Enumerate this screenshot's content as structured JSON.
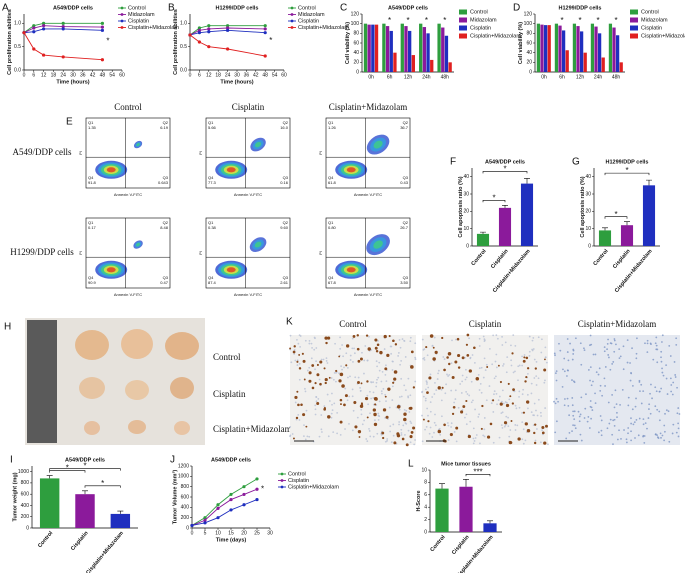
{
  "chart_data": [
    {
      "panel": "A",
      "type": "line",
      "title": "A549/DDP cells",
      "x_label": "Time (hours)",
      "y_label": "Cell proliferation abilities",
      "x": [
        0,
        6,
        12,
        24,
        48
      ],
      "series": [
        {
          "name": "Control",
          "color": "#2e9e3e",
          "values": [
            0.8,
            0.95,
            1.0,
            1.0,
            1.0
          ]
        },
        {
          "name": "Midazolam",
          "color": "#8b1a9b",
          "values": [
            0.8,
            0.9,
            0.95,
            0.93,
            0.92
          ]
        },
        {
          "name": "Cisplatin",
          "color": "#1f2fbf",
          "values": [
            0.8,
            0.82,
            0.88,
            0.88,
            0.85
          ]
        },
        {
          "name": "Cisplatin+Midazolam",
          "color": "#e02020",
          "values": [
            0.8,
            0.45,
            0.32,
            0.28,
            0.22
          ]
        }
      ],
      "xlim": [
        0,
        60
      ],
      "xticks": [
        0,
        6,
        12,
        18,
        24,
        30,
        36,
        42,
        48,
        54,
        60
      ],
      "ylim": [
        0,
        1.2
      ],
      "yticks": [
        {
          "value": 0,
          "label": "0.0"
        },
        0.5,
        {
          "value": 1,
          "label": "1.0"
        }
      ],
      "annotations": [
        "*"
      ]
    },
    {
      "panel": "B",
      "type": "line",
      "title": "H1299/DDP cells",
      "x_label": "Time (hours)",
      "y_label": "Cell proliferation abilities",
      "x": [
        0,
        6,
        12,
        24,
        48
      ],
      "series": [
        {
          "name": "Control",
          "color": "#2e9e3e",
          "values": [
            0.75,
            0.9,
            0.95,
            0.95,
            0.95
          ]
        },
        {
          "name": "Midazolam",
          "color": "#8b1a9b",
          "values": [
            0.75,
            0.85,
            0.88,
            0.9,
            0.88
          ]
        },
        {
          "name": "Cisplatin",
          "color": "#1f2fbf",
          "values": [
            0.75,
            0.8,
            0.82,
            0.85,
            0.8
          ]
        },
        {
          "name": "Cisplatin+Midazolam",
          "color": "#e02020",
          "values": [
            0.75,
            0.6,
            0.5,
            0.45,
            0.3
          ]
        }
      ],
      "xlim": [
        0,
        60
      ],
      "xticks": [
        0,
        6,
        12,
        18,
        24,
        30,
        36,
        42,
        48,
        54,
        60
      ],
      "ylim": [
        0,
        1.2
      ],
      "yticks": [
        {
          "value": 0,
          "label": "0.0"
        },
        0.5,
        {
          "value": 1,
          "label": "1.0"
        }
      ],
      "annotations": [
        "*"
      ]
    },
    {
      "panel": "C",
      "type": "grouped_bar",
      "title": "A549/DDP cells",
      "y_label": "Cell viability (%)",
      "categories": [
        "0h",
        "6h",
        "12h",
        "24h",
        "48h"
      ],
      "series": [
        {
          "name": "Control",
          "color": "#2e9e3e",
          "values": [
            100,
            100,
            100,
            100,
            100
          ]
        },
        {
          "name": "Midazolam",
          "color": "#8b1a9b",
          "values": [
            98,
            95,
            95,
            93,
            92
          ]
        },
        {
          "name": "Cisplatin",
          "color": "#1f2fbf",
          "values": [
            98,
            85,
            85,
            80,
            75
          ]
        },
        {
          "name": "Cisplatin+Midazolam",
          "color": "#e02020",
          "values": [
            98,
            40,
            35,
            25,
            20
          ]
        }
      ],
      "ylim": [
        0,
        120
      ],
      "yticks": [
        0,
        20,
        40,
        60,
        80,
        100,
        120
      ],
      "annotations": [
        "*",
        "*",
        "*",
        "*"
      ]
    },
    {
      "panel": "D",
      "type": "grouped_bar",
      "title": "H1299/DDP cells",
      "y_label": "Cell viability (%)",
      "categories": [
        "0h",
        "6h",
        "12h",
        "24h",
        "48h"
      ],
      "series": [
        {
          "name": "Control",
          "color": "#2e9e3e",
          "values": [
            100,
            100,
            100,
            100,
            100
          ]
        },
        {
          "name": "Midazolam",
          "color": "#8b1a9b",
          "values": [
            98,
            96,
            95,
            94,
            92
          ]
        },
        {
          "name": "Cisplatin",
          "color": "#1f2fbf",
          "values": [
            97,
            86,
            84,
            80,
            76
          ]
        },
        {
          "name": "Cisplatin+Midazolam",
          "color": "#e02020",
          "values": [
            97,
            45,
            40,
            30,
            20
          ]
        }
      ],
      "ylim": [
        0,
        120
      ],
      "yticks": [
        0,
        20,
        40,
        60,
        80,
        100,
        120
      ],
      "annotations": [
        "*",
        "*",
        "*",
        "*"
      ]
    },
    {
      "panel": "F",
      "type": "bar",
      "title": "A549/DDP cells",
      "y_label": "Cell apoptosis ratio (%)",
      "categories": [
        "Control",
        "Cisplatin",
        "Cisplatin+Midazolam"
      ],
      "values": [
        7,
        22,
        36
      ],
      "errors": [
        1,
        1.5,
        3
      ],
      "colors": [
        "#2e9e3e",
        "#8b1a9b",
        "#1f2fbf"
      ],
      "ylim": [
        0,
        45
      ],
      "yticks": [
        0,
        10,
        20,
        30,
        40
      ],
      "annotations": [
        "*",
        "*"
      ]
    },
    {
      "panel": "G",
      "type": "bar",
      "title": "H1299/DDP cells",
      "y_label": "Cell apoptosis ratio (%)",
      "categories": [
        "Control",
        "Cisplatin",
        "Cisplatin+Midazolam"
      ],
      "values": [
        9,
        12,
        35
      ],
      "errors": [
        1.5,
        2,
        3
      ],
      "colors": [
        "#2e9e3e",
        "#8b1a9b",
        "#1f2fbf"
      ],
      "ylim": [
        0,
        45
      ],
      "yticks": [
        0,
        10,
        20,
        30,
        40
      ],
      "annotations": [
        "*",
        "*"
      ]
    },
    {
      "panel": "I",
      "type": "bar",
      "title": "A549/DDP cells",
      "y_label": "Tumor weight (mg)",
      "categories": [
        "Control",
        "Cisplatin",
        "Cisplatin+Midazolam"
      ],
      "values": [
        880,
        600,
        250
      ],
      "errors": [
        50,
        60,
        50
      ],
      "colors": [
        "#2e9e3e",
        "#8b1a9b",
        "#1f2fbf"
      ],
      "ylim": [
        0,
        1100
      ],
      "yticks": [
        0,
        200,
        400,
        600,
        800,
        1000
      ],
      "annotations": [
        "*",
        "*",
        "*"
      ]
    },
    {
      "panel": "J",
      "type": "line",
      "title": "A549/DDP cells",
      "x_label": "Time (days)",
      "y_label": "Tumor Volume (mm³)",
      "x": [
        0,
        5,
        10,
        15,
        20,
        25
      ],
      "series": [
        {
          "name": "Control",
          "color": "#2e9e3e",
          "values": [
            50,
            200,
            450,
            650,
            800,
            950
          ]
        },
        {
          "name": "Cisplatin",
          "color": "#8b1a9b",
          "values": [
            50,
            150,
            380,
            550,
            650,
            750
          ]
        },
        {
          "name": "Cisplatin+Midazolam",
          "color": "#1f2fbf",
          "values": [
            50,
            100,
            200,
            350,
            450,
            550
          ]
        }
      ],
      "xlim": [
        0,
        30
      ],
      "xticks": [
        0,
        5,
        10,
        15,
        20,
        25,
        30
      ],
      "ylim": [
        0,
        1200
      ],
      "yticks": [
        0,
        200,
        400,
        600,
        800,
        1000,
        1200
      ],
      "annotations": [
        "*"
      ]
    },
    {
      "panel": "L",
      "type": "bar",
      "title": "Mice tumor tissues",
      "y_label": "H-Score",
      "categories": [
        "Control",
        "Cisplatin",
        "Cisplatin+Midazolam"
      ],
      "values": [
        7,
        7.3,
        1.4
      ],
      "errors": [
        0.8,
        1.2,
        0.4
      ],
      "colors": [
        "#2e9e3e",
        "#8b1a9b",
        "#1f2fbf"
      ],
      "ylim": [
        0,
        10
      ],
      "yticks": [
        0,
        2,
        4,
        6,
        8,
        10
      ],
      "annotations": [
        "***"
      ]
    }
  ],
  "flow_cytometry": {
    "panel": "E",
    "row_labels": [
      "A549/DDP cells",
      "H1299/DDP cells"
    ],
    "column_labels": [
      "Control",
      "Cisplatin",
      "Cisplatin+Midazolam"
    ],
    "x_label": "Annexin V-FITC",
    "y_label": "PI",
    "quadrant_names": [
      "Q1",
      "Q2",
      "Q3",
      "Q4"
    ],
    "plots": [
      [
        [
          "1.35",
          "6.19",
          "0.643",
          "91.8"
        ],
        [
          "5.66",
          "16.0",
          "0.16",
          "77.3"
        ],
        [
          "1.26",
          "36.7",
          "0.43",
          "61.8"
        ]
      ],
      [
        [
          "0.17",
          "8.48",
          "0.47",
          "90.9"
        ],
        [
          "0.38",
          "9.60",
          "2.61",
          "87.4"
        ],
        [
          "0.80",
          "26.7",
          "3.50",
          "67.8"
        ]
      ]
    ]
  },
  "tumor_photo": {
    "panel": "H",
    "labels": [
      "Control",
      "Cisplatin",
      "Cisplatin+Midazolam"
    ]
  },
  "ihc": {
    "panel": "K",
    "labels": [
      "Control",
      "Cisplatin",
      "Cisplatin+Midazolam"
    ]
  }
}
